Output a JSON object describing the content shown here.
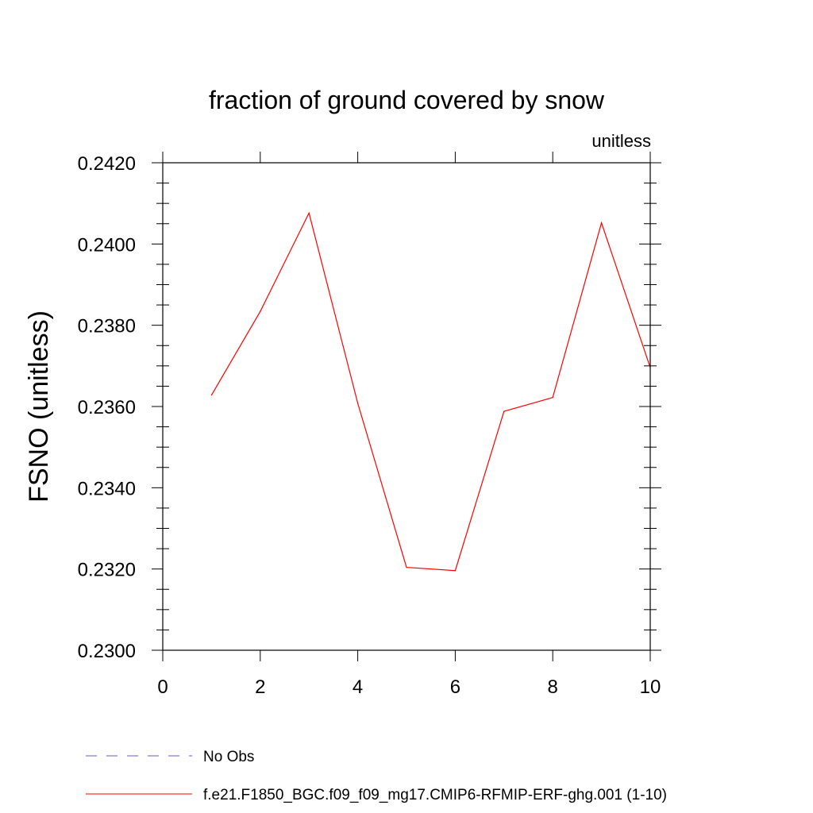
{
  "chart_data": {
    "type": "line",
    "title": "fraction of ground covered by snow",
    "units_label": "unitless",
    "ylabel": "FSNO  (unitless)",
    "xlabel": "",
    "xlim": [
      0,
      10
    ],
    "ylim": [
      0.23,
      0.242
    ],
    "x_ticks": [
      0,
      2,
      4,
      6,
      8,
      10
    ],
    "x_tick_labels": [
      "0",
      "2",
      "4",
      "6",
      "8",
      "10"
    ],
    "y_ticks": [
      0.23,
      0.232,
      0.234,
      0.236,
      0.238,
      0.24,
      0.242
    ],
    "y_tick_labels": [
      "0.2300",
      "0.2320",
      "0.2340",
      "0.2360",
      "0.2380",
      "0.2400",
      "0.2420"
    ],
    "grid": false,
    "legend_position": "bottom",
    "series": [
      {
        "name": "f.e21.F1850_BGC.f09_f09_mg17.CMIP6-RFMIP-ERF-ghg.001 (1-10)",
        "color": "#ff0000",
        "style": "solid",
        "x": [
          1,
          2,
          3,
          4,
          5,
          6,
          7,
          8,
          9,
          10
        ],
        "y": [
          0.23628,
          0.23834,
          0.24076,
          0.23608,
          0.23204,
          0.23196,
          0.23588,
          0.23622,
          0.24052,
          0.23696
        ]
      }
    ],
    "legend": [
      {
        "label": "No Obs",
        "color": "#6a5acd",
        "style": "dashed"
      },
      {
        "label": "f.e21.F1850_BGC.f09_f09_mg17.CMIP6-RFMIP-ERF-ghg.001 (1-10)",
        "color": "#ff0000",
        "style": "solid"
      }
    ]
  }
}
